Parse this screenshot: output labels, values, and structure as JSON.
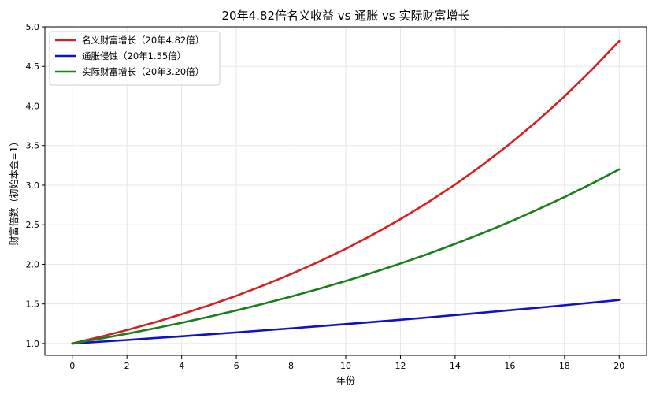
{
  "chart_data": {
    "type": "line",
    "title": "20年4.82倍名义收益 vs 通胀 vs 实际财富增长",
    "xlabel": "年份",
    "ylabel": "财富倍数（初始本金=1）",
    "xlim": [
      -1,
      21
    ],
    "ylim": [
      0.85,
      5.0
    ],
    "xticks": [
      0,
      2,
      4,
      6,
      8,
      10,
      12,
      14,
      16,
      18,
      20
    ],
    "yticks": [
      1.0,
      1.5,
      2.0,
      2.5,
      3.0,
      3.5,
      4.0,
      4.5,
      5.0
    ],
    "grid": true,
    "legend_position": "top-left",
    "x": [
      0,
      1,
      2,
      3,
      4,
      5,
      6,
      7,
      8,
      9,
      10,
      11,
      12,
      13,
      14,
      15,
      16,
      17,
      18,
      19,
      20
    ],
    "series": [
      {
        "name": "名义财富增长（20年4.82倍）",
        "color": "#d62020",
        "values": [
          1.0,
          1.082,
          1.17,
          1.266,
          1.37,
          1.482,
          1.603,
          1.735,
          1.877,
          2.03,
          2.196,
          2.376,
          2.57,
          2.781,
          3.008,
          3.255,
          3.521,
          3.809,
          4.121,
          4.458,
          4.82
        ]
      },
      {
        "name": "通胀侵蚀（20年1.55倍）",
        "color": "#1010c8",
        "values": [
          1.0,
          1.022,
          1.044,
          1.068,
          1.091,
          1.116,
          1.14,
          1.166,
          1.191,
          1.218,
          1.245,
          1.272,
          1.3,
          1.329,
          1.359,
          1.389,
          1.42,
          1.451,
          1.483,
          1.516,
          1.55
        ]
      },
      {
        "name": "实际财富增长（20年3.20倍）",
        "color": "#178017",
        "values": [
          1.0,
          1.06,
          1.123,
          1.191,
          1.262,
          1.338,
          1.418,
          1.503,
          1.593,
          1.688,
          1.789,
          1.896,
          2.01,
          2.13,
          2.258,
          2.393,
          2.536,
          2.689,
          2.85,
          3.02,
          3.2
        ]
      }
    ]
  }
}
